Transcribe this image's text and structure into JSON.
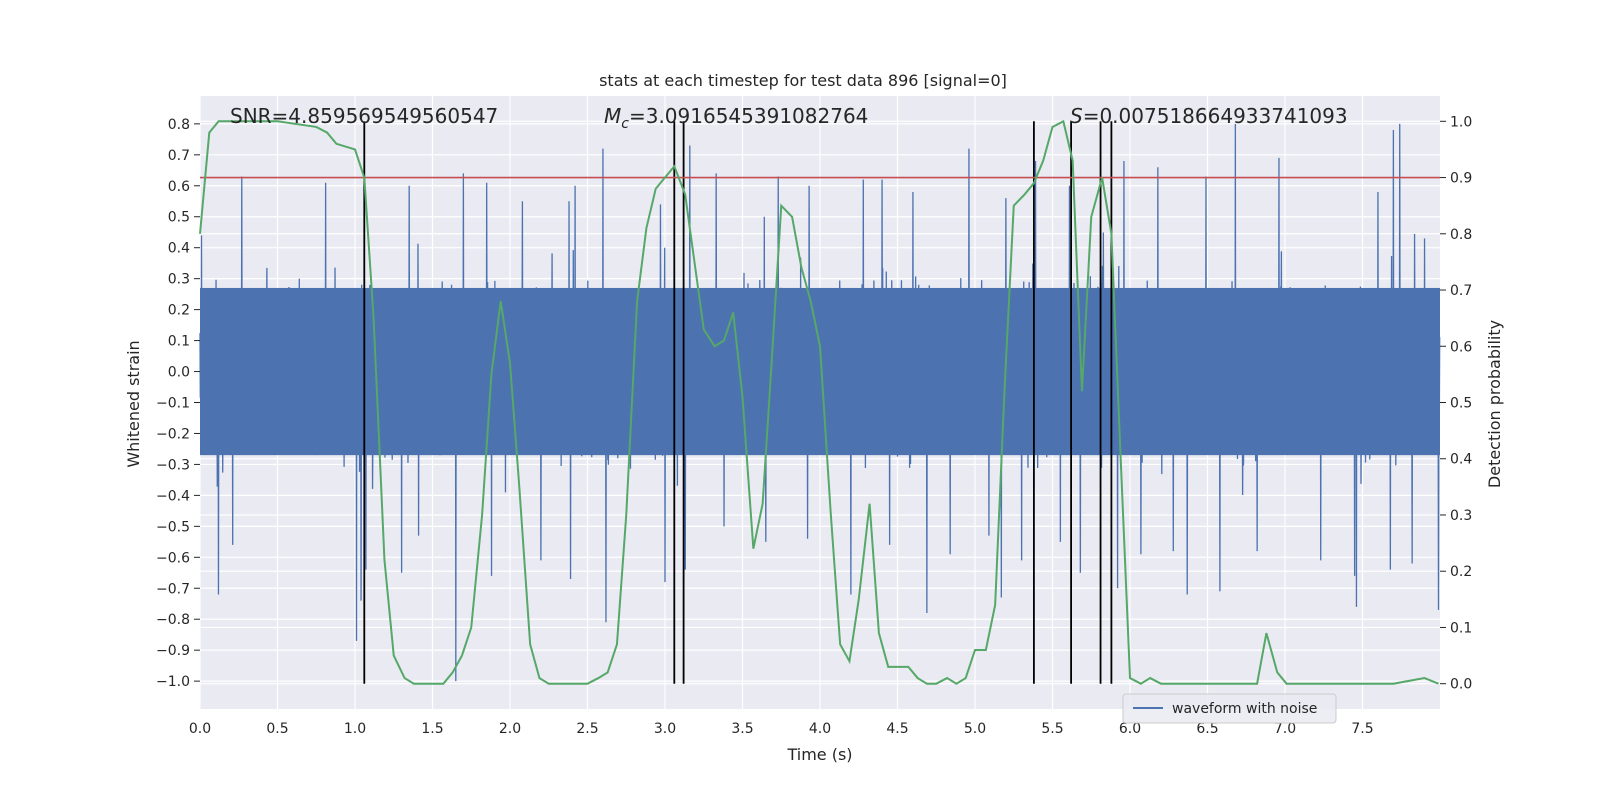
{
  "chart_data": {
    "type": "line",
    "title": "stats at each timestep for test data 896 [signal=0]",
    "xlabel": "Time (s)",
    "ylabel": "Whitened strain",
    "y2label": "Detection probability",
    "xlim": [
      0.0,
      8.0
    ],
    "ylim": [
      -1.09,
      0.89
    ],
    "y2lim": [
      -0.045,
      1.045
    ],
    "x_ticks": [
      "0.0",
      "0.5",
      "1.0",
      "1.5",
      "2.0",
      "2.5",
      "3.0",
      "3.5",
      "4.0",
      "4.5",
      "5.0",
      "5.5",
      "6.0",
      "6.5",
      "7.0",
      "7.5"
    ],
    "y_ticks": [
      "0.8",
      "0.7",
      "0.6",
      "0.5",
      "0.4",
      "0.3",
      "0.2",
      "0.1",
      "0.0",
      "−0.1",
      "−0.2",
      "−0.3",
      "−0.4",
      "−0.5",
      "−0.6",
      "−0.7",
      "−0.8",
      "−0.9",
      "−1.0"
    ],
    "y2_ticks": [
      "1.0",
      "0.9",
      "0.8",
      "0.7",
      "0.6",
      "0.5",
      "0.4",
      "0.3",
      "0.2",
      "0.1",
      "0.0"
    ],
    "grid": true,
    "legend": {
      "placement": "lower-center",
      "entries": [
        "waveform with noise"
      ]
    },
    "annotations": {
      "snr": "SNR=4.859569549560547",
      "mc_symbol": "M",
      "mc_sub": "c",
      "mc_value": "=3.0916545391082764",
      "s_symbol": "S",
      "s_value": "=0.007518664933741093"
    },
    "threshold": 0.9,
    "vlines_x": [
      1.06,
      3.06,
      3.12,
      5.38,
      5.62,
      5.81,
      5.88
    ],
    "colors": {
      "waveform": "#4c72b0",
      "probability": "#55a868",
      "threshold": "#c44e52",
      "vline": "#000000",
      "background": "#eaeaf2",
      "grid": "#ffffff"
    },
    "waveform": {
      "name": "waveform with noise",
      "sample_rate": 512,
      "envelope_core": 0.27,
      "peak_up": [
        [
          0.01,
          0.44
        ],
        [
          0.27,
          0.63
        ],
        [
          0.81,
          0.61
        ],
        [
          1.35,
          0.6
        ],
        [
          1.7,
          0.64
        ],
        [
          1.85,
          0.61
        ],
        [
          2.08,
          0.55
        ],
        [
          2.38,
          0.55
        ],
        [
          2.42,
          0.6
        ],
        [
          2.6,
          0.72
        ],
        [
          2.97,
          0.54
        ],
        [
          3.16,
          0.73
        ],
        [
          3.33,
          0.64
        ],
        [
          3.64,
          0.5
        ],
        [
          3.73,
          0.63
        ],
        [
          3.93,
          0.6
        ],
        [
          4.28,
          0.62
        ],
        [
          4.4,
          0.62
        ],
        [
          4.6,
          0.58
        ],
        [
          4.84,
          0.63
        ],
        [
          4.96,
          0.72
        ],
        [
          5.2,
          0.56
        ],
        [
          5.39,
          0.68
        ],
        [
          5.61,
          0.6
        ],
        [
          5.96,
          0.68
        ],
        [
          6.18,
          0.66
        ],
        [
          6.49,
          0.63
        ],
        [
          6.68,
          0.8
        ],
        [
          6.96,
          0.69
        ],
        [
          7.23,
          0.69
        ],
        [
          7.6,
          0.58
        ],
        [
          7.7,
          0.78
        ],
        [
          7.74,
          0.8
        ],
        [
          7.9,
          0.43
        ]
      ],
      "peak_down": [
        [
          0.12,
          -0.72
        ],
        [
          0.21,
          -0.56
        ],
        [
          1.01,
          -0.87
        ],
        [
          1.04,
          -0.74
        ],
        [
          1.07,
          -0.64
        ],
        [
          1.3,
          -0.65
        ],
        [
          1.41,
          -0.53
        ],
        [
          1.65,
          -1.0
        ],
        [
          1.88,
          -0.66
        ],
        [
          2.2,
          -0.61
        ],
        [
          2.39,
          -0.67
        ],
        [
          2.62,
          -0.81
        ],
        [
          3.0,
          -0.68
        ],
        [
          3.13,
          -0.64
        ],
        [
          3.38,
          -0.5
        ],
        [
          3.65,
          -0.55
        ],
        [
          3.92,
          -0.54
        ],
        [
          4.2,
          -0.72
        ],
        [
          4.45,
          -0.56
        ],
        [
          4.69,
          -0.78
        ],
        [
          4.84,
          -0.59
        ],
        [
          5.09,
          -0.53
        ],
        [
          5.17,
          -0.73
        ],
        [
          5.3,
          -0.61
        ],
        [
          5.55,
          -0.55
        ],
        [
          5.68,
          -0.65
        ],
        [
          5.92,
          -0.7
        ],
        [
          6.07,
          -0.59
        ],
        [
          6.28,
          -0.58
        ],
        [
          6.37,
          -0.72
        ],
        [
          6.58,
          -0.71
        ],
        [
          6.82,
          -0.58
        ],
        [
          7.23,
          -0.61
        ],
        [
          7.45,
          -0.66
        ],
        [
          7.46,
          -0.76
        ],
        [
          7.68,
          -0.64
        ],
        [
          7.82,
          -0.62
        ],
        [
          7.99,
          -0.77
        ]
      ]
    },
    "probability": {
      "x": [
        0.0,
        0.06,
        0.12,
        0.25,
        0.5,
        0.75,
        0.82,
        0.88,
        1.0,
        1.06,
        1.12,
        1.19,
        1.25,
        1.32,
        1.38,
        1.44,
        1.5,
        1.57,
        1.63,
        1.69,
        1.75,
        1.82,
        1.88,
        1.94,
        2.0,
        2.06,
        2.13,
        2.19,
        2.25,
        2.5,
        2.57,
        2.63,
        2.69,
        2.75,
        2.82,
        2.88,
        2.94,
        3.0,
        3.06,
        3.13,
        3.19,
        3.25,
        3.32,
        3.38,
        3.44,
        3.5,
        3.57,
        3.63,
        3.69,
        3.75,
        3.82,
        3.88,
        3.94,
        4.0,
        4.07,
        4.13,
        4.19,
        4.25,
        4.32,
        4.38,
        4.44,
        4.5,
        4.57,
        4.63,
        4.69,
        4.75,
        4.82,
        4.88,
        4.94,
        5.0,
        5.07,
        5.13,
        5.19,
        5.25,
        5.32,
        5.38,
        5.44,
        5.5,
        5.57,
        5.63,
        5.69,
        5.75,
        5.82,
        5.88,
        5.94,
        6.0,
        6.07,
        6.13,
        6.2,
        6.5,
        6.82,
        6.88,
        6.95,
        7.01,
        7.1,
        7.5,
        7.7,
        7.9,
        7.99
      ],
      "y": [
        0.8,
        0.98,
        1.0,
        1.0,
        1.0,
        0.99,
        0.98,
        0.96,
        0.95,
        0.9,
        0.65,
        0.22,
        0.05,
        0.01,
        0.0,
        0.0,
        0.0,
        0.0,
        0.02,
        0.05,
        0.1,
        0.3,
        0.55,
        0.68,
        0.57,
        0.35,
        0.07,
        0.01,
        0.0,
        0.0,
        0.01,
        0.02,
        0.07,
        0.3,
        0.68,
        0.81,
        0.88,
        0.9,
        0.92,
        0.87,
        0.75,
        0.63,
        0.6,
        0.61,
        0.66,
        0.51,
        0.24,
        0.32,
        0.58,
        0.85,
        0.83,
        0.74,
        0.68,
        0.6,
        0.3,
        0.07,
        0.04,
        0.15,
        0.32,
        0.09,
        0.03,
        0.03,
        0.03,
        0.01,
        0.0,
        0.0,
        0.01,
        0.0,
        0.01,
        0.06,
        0.06,
        0.14,
        0.52,
        0.85,
        0.87,
        0.89,
        0.93,
        0.99,
        1.0,
        0.93,
        0.52,
        0.83,
        0.9,
        0.8,
        0.4,
        0.01,
        0.0,
        0.01,
        0.0,
        0.0,
        0.0,
        0.09,
        0.02,
        0.0,
        0.0,
        0.0,
        0.0,
        0.01,
        0.0
      ]
    }
  }
}
